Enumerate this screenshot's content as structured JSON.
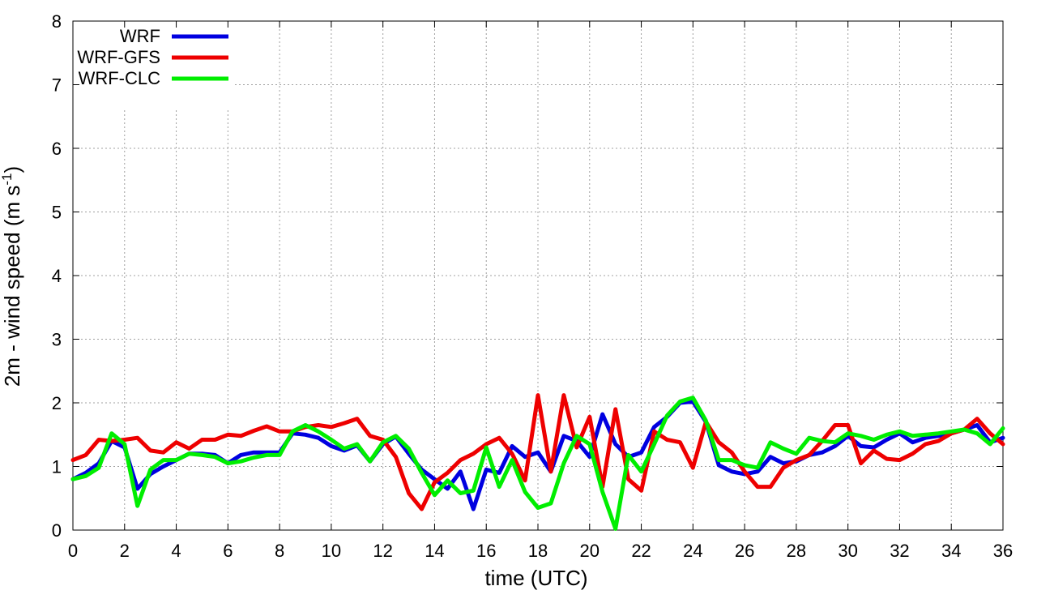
{
  "chart_data": {
    "type": "line",
    "xlabel": "time (UTC)",
    "ylabel": "2m - wind speed  (m s",
    "ylabel_sup": "-1",
    "ylabel_close": ")",
    "xlim": [
      0,
      36
    ],
    "ylim": [
      0,
      8
    ],
    "xticks": [
      0,
      2,
      4,
      6,
      8,
      10,
      12,
      14,
      16,
      18,
      20,
      22,
      24,
      26,
      28,
      30,
      32,
      34,
      36
    ],
    "yticks": [
      0,
      1,
      2,
      3,
      4,
      5,
      6,
      7,
      8
    ],
    "grid": true,
    "legend_position": "top-left",
    "series": [
      {
        "name": "WRF",
        "color": "#0000e0",
        "x": [
          0,
          0.5,
          1,
          1.5,
          2,
          2.5,
          3,
          3.5,
          4,
          4.5,
          5,
          5.5,
          6,
          6.5,
          7,
          7.5,
          8,
          8.5,
          9,
          9.5,
          10,
          10.5,
          11,
          11.5,
          12,
          12.5,
          13,
          13.5,
          14,
          14.5,
          15,
          15.5,
          16,
          16.5,
          17,
          17.5,
          18,
          18.5,
          19,
          19.5,
          20,
          20.5,
          21,
          21.5,
          22,
          22.5,
          23,
          23.5,
          24,
          24.5,
          25,
          25.5,
          26,
          26.5,
          27,
          27.5,
          28,
          28.5,
          29,
          29.5,
          30,
          30.5,
          31,
          31.5,
          32,
          32.5,
          33,
          33.5,
          34,
          34.5,
          35,
          35.5,
          36
        ],
        "y": [
          0.8,
          0.9,
          1.05,
          1.4,
          1.3,
          0.65,
          0.88,
          1.0,
          1.1,
          1.2,
          1.2,
          1.18,
          1.05,
          1.18,
          1.22,
          1.22,
          1.22,
          1.52,
          1.5,
          1.45,
          1.32,
          1.25,
          1.33,
          1.08,
          1.35,
          1.47,
          1.2,
          0.95,
          0.8,
          0.65,
          0.92,
          0.33,
          0.95,
          0.9,
          1.32,
          1.15,
          1.22,
          0.92,
          1.48,
          1.4,
          1.15,
          1.82,
          1.35,
          1.15,
          1.22,
          1.62,
          1.78,
          2.0,
          2.02,
          1.7,
          1.02,
          0.92,
          0.88,
          0.92,
          1.15,
          1.05,
          1.08,
          1.18,
          1.22,
          1.32,
          1.48,
          1.32,
          1.3,
          1.42,
          1.52,
          1.38,
          1.45,
          1.48,
          1.52,
          1.58,
          1.65,
          1.38,
          1.45
        ]
      },
      {
        "name": "WRF-GFS",
        "color": "#ee0000",
        "x": [
          0,
          0.5,
          1,
          1.5,
          2,
          2.5,
          3,
          3.5,
          4,
          4.5,
          5,
          5.5,
          6,
          6.5,
          7,
          7.5,
          8,
          8.5,
          9,
          9.5,
          10,
          10.5,
          11,
          11.5,
          12,
          12.5,
          13,
          13.5,
          14,
          14.5,
          15,
          15.5,
          16,
          16.5,
          17,
          17.5,
          18,
          18.5,
          19,
          19.5,
          20,
          20.5,
          21,
          21.5,
          22,
          22.5,
          23,
          23.5,
          24,
          24.5,
          25,
          25.5,
          26,
          26.5,
          27,
          27.5,
          28,
          28.5,
          29,
          29.5,
          30,
          30.5,
          31,
          31.5,
          32,
          32.5,
          33,
          33.5,
          34,
          34.5,
          35,
          35.5,
          36
        ],
        "y": [
          1.1,
          1.18,
          1.42,
          1.4,
          1.42,
          1.45,
          1.25,
          1.22,
          1.38,
          1.28,
          1.42,
          1.42,
          1.5,
          1.48,
          1.56,
          1.63,
          1.55,
          1.55,
          1.62,
          1.65,
          1.62,
          1.68,
          1.75,
          1.48,
          1.42,
          1.15,
          0.58,
          0.33,
          0.75,
          0.9,
          1.1,
          1.2,
          1.35,
          1.45,
          1.2,
          0.78,
          2.12,
          0.92,
          2.12,
          1.3,
          1.78,
          0.68,
          1.9,
          0.8,
          0.62,
          1.55,
          1.42,
          1.38,
          0.98,
          1.7,
          1.38,
          1.22,
          0.92,
          0.68,
          0.68,
          0.98,
          1.1,
          1.18,
          1.4,
          1.65,
          1.65,
          1.05,
          1.25,
          1.12,
          1.1,
          1.2,
          1.35,
          1.4,
          1.52,
          1.58,
          1.75,
          1.52,
          1.35
        ]
      },
      {
        "name": "WRF-CLC",
        "color": "#00ee00",
        "x": [
          0,
          0.5,
          1,
          1.5,
          2,
          2.5,
          3,
          3.5,
          4,
          4.5,
          5,
          5.5,
          6,
          6.5,
          7,
          7.5,
          8,
          8.5,
          9,
          9.5,
          10,
          10.5,
          11,
          11.5,
          12,
          12.5,
          13,
          13.5,
          14,
          14.5,
          15,
          15.5,
          16,
          16.5,
          17,
          17.5,
          18,
          18.5,
          19,
          19.5,
          20,
          20.5,
          21,
          21.5,
          22,
          22.5,
          23,
          23.5,
          24,
          24.5,
          25,
          25.5,
          26,
          26.5,
          27,
          27.5,
          28,
          28.5,
          29,
          29.5,
          30,
          30.5,
          31,
          31.5,
          32,
          32.5,
          33,
          33.5,
          34,
          34.5,
          35,
          35.5,
          36
        ],
        "y": [
          0.8,
          0.85,
          0.98,
          1.52,
          1.35,
          0.38,
          0.95,
          1.1,
          1.1,
          1.2,
          1.18,
          1.15,
          1.05,
          1.08,
          1.14,
          1.18,
          1.18,
          1.55,
          1.65,
          1.55,
          1.42,
          1.28,
          1.35,
          1.08,
          1.38,
          1.48,
          1.28,
          0.9,
          0.55,
          0.78,
          0.58,
          0.62,
          1.3,
          0.68,
          1.1,
          0.6,
          0.35,
          0.42,
          1.05,
          1.48,
          1.35,
          0.6,
          0.02,
          1.18,
          0.92,
          1.35,
          1.8,
          2.02,
          2.08,
          1.72,
          1.1,
          1.1,
          1.02,
          0.98,
          1.38,
          1.28,
          1.2,
          1.45,
          1.4,
          1.38,
          1.52,
          1.48,
          1.42,
          1.5,
          1.55,
          1.48,
          1.5,
          1.52,
          1.55,
          1.58,
          1.52,
          1.35,
          1.6
        ]
      }
    ]
  }
}
